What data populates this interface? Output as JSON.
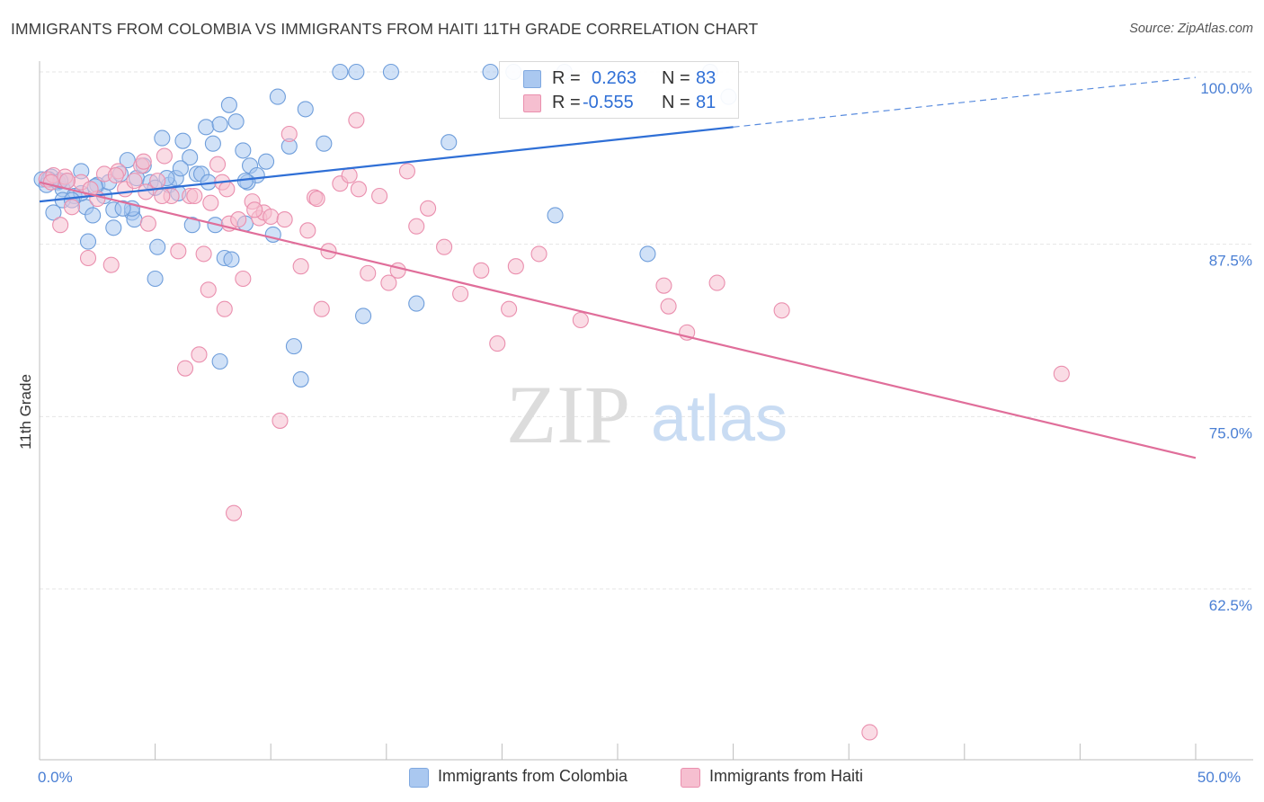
{
  "header": {
    "title": "IMMIGRANTS FROM COLOMBIA VS IMMIGRANTS FROM HAITI 11TH GRADE CORRELATION CHART",
    "source": "Source: ZipAtlas.com"
  },
  "watermark": {
    "zip": "ZIP",
    "atlas": "atlas"
  },
  "legend": {
    "r_label": "R =",
    "n_label": "N =",
    "rows": [
      {
        "r": "0.263",
        "n": "83",
        "color": "#7fa8e0"
      },
      {
        "r": "-0.555",
        "n": "81",
        "color": "#f1a3bc"
      }
    ]
  },
  "colors": {
    "blue_fill": "#aac8f0",
    "blue_stroke": "#6f9edb",
    "blue_line": "#2f6fd6",
    "pink_fill": "#f6bfd0",
    "pink_stroke": "#ea8fae",
    "pink_line": "#e06e9a",
    "tick_label": "#4a7fd4",
    "grid": "#e5e5e5"
  },
  "chart_data": {
    "type": "scatter",
    "title": "IMMIGRANTS FROM COLOMBIA VS IMMIGRANTS FROM HAITI 11TH GRADE CORRELATION CHART",
    "xlabel": "",
    "ylabel": "11th Grade",
    "xlim": [
      0,
      50
    ],
    "ylim": [
      50,
      102.5
    ],
    "x_ticks": [
      0,
      5,
      10,
      15,
      20,
      25,
      30,
      35,
      40,
      45,
      50
    ],
    "x_tick_labels": {
      "0": "0.0%",
      "50": "50.0%"
    },
    "y_ticks": [
      62.5,
      75.0,
      87.5,
      100.0
    ],
    "y_tick_labels": [
      "62.5%",
      "75.0%",
      "87.5%",
      "100.0%"
    ],
    "grid": true,
    "legend_position": "top-center",
    "series": [
      {
        "name": "Immigrants from Colombia",
        "color": "#aac8f0",
        "trend": {
          "x0": 0,
          "y0": 90.6,
          "x1": 30,
          "y1": 96.0,
          "dash_to_x": 50,
          "dash_to_y": 99.6
        },
        "points": [
          [
            0.1,
            92.2
          ],
          [
            0.3,
            91.8
          ],
          [
            0.5,
            92.4
          ],
          [
            0.8,
            92.0
          ],
          [
            1.0,
            91.5
          ],
          [
            0.6,
            89.8
          ],
          [
            1.2,
            92.1
          ],
          [
            1.5,
            91.0
          ],
          [
            1.8,
            92.8
          ],
          [
            2.0,
            90.2
          ],
          [
            2.3,
            89.6
          ],
          [
            2.5,
            91.8
          ],
          [
            2.8,
            91.0
          ],
          [
            3.0,
            92.0
          ],
          [
            3.2,
            90.0
          ],
          [
            3.5,
            92.6
          ],
          [
            3.8,
            93.6
          ],
          [
            4.0,
            89.8
          ],
          [
            4.2,
            92.3
          ],
          [
            4.5,
            93.2
          ],
          [
            4.8,
            92.0
          ],
          [
            5.0,
            91.6
          ],
          [
            5.3,
            95.2
          ],
          [
            5.6,
            91.8
          ],
          [
            5.9,
            92.3
          ],
          [
            6.2,
            95.0
          ],
          [
            6.5,
            93.8
          ],
          [
            6.8,
            92.6
          ],
          [
            7.2,
            96.0
          ],
          [
            7.5,
            94.8
          ],
          [
            7.8,
            96.2
          ],
          [
            8.2,
            97.6
          ],
          [
            8.5,
            96.4
          ],
          [
            8.8,
            94.3
          ],
          [
            9.1,
            93.2
          ],
          [
            9.4,
            92.5
          ],
          [
            9.8,
            93.5
          ],
          [
            10.3,
            98.2
          ],
          [
            10.8,
            94.6
          ],
          [
            11.5,
            97.3
          ],
          [
            12.3,
            94.8
          ],
          [
            13.0,
            100.0
          ],
          [
            13.7,
            100.0
          ],
          [
            15.2,
            100.0
          ],
          [
            17.7,
            94.9
          ],
          [
            19.5,
            100.0
          ],
          [
            20.5,
            100.0
          ],
          [
            22.7,
            100.0
          ],
          [
            29.0,
            100.0
          ],
          [
            29.8,
            98.2
          ],
          [
            2.1,
            87.7
          ],
          [
            3.2,
            88.7
          ],
          [
            4.1,
            89.3
          ],
          [
            5.1,
            87.3
          ],
          [
            5.0,
            85.0
          ],
          [
            6.6,
            88.9
          ],
          [
            7.6,
            88.9
          ],
          [
            8.0,
            86.5
          ],
          [
            8.3,
            86.4
          ],
          [
            8.9,
            89.0
          ],
          [
            10.1,
            88.2
          ],
          [
            11.0,
            80.1
          ],
          [
            11.3,
            77.7
          ],
          [
            14.0,
            82.3
          ],
          [
            16.3,
            83.2
          ],
          [
            7.8,
            79.0
          ],
          [
            22.3,
            89.6
          ],
          [
            26.3,
            86.8
          ],
          [
            1.0,
            90.7
          ],
          [
            1.8,
            91.2
          ],
          [
            4.0,
            90.1
          ],
          [
            6.0,
            91.2
          ],
          [
            7.0,
            92.6
          ],
          [
            9.0,
            92.0
          ],
          [
            0.4,
            92.2
          ],
          [
            0.9,
            92.1
          ],
          [
            1.4,
            90.7
          ],
          [
            2.4,
            91.7
          ],
          [
            3.6,
            90.1
          ],
          [
            5.5,
            92.3
          ],
          [
            6.1,
            93.0
          ],
          [
            7.3,
            92.0
          ],
          [
            8.9,
            92.1
          ]
        ]
      },
      {
        "name": "Immigrants from Haiti",
        "color": "#f6bfd0",
        "trend": {
          "x0": 0,
          "y0": 92.0,
          "x1": 50,
          "y1": 72.0
        },
        "points": [
          [
            0.3,
            92.2
          ],
          [
            0.6,
            92.5
          ],
          [
            0.9,
            88.9
          ],
          [
            1.1,
            92.4
          ],
          [
            1.4,
            90.2
          ],
          [
            1.8,
            92.0
          ],
          [
            2.1,
            86.5
          ],
          [
            2.5,
            90.8
          ],
          [
            2.8,
            92.6
          ],
          [
            3.1,
            86.0
          ],
          [
            3.4,
            92.8
          ],
          [
            3.7,
            91.5
          ],
          [
            4.1,
            92.1
          ],
          [
            4.4,
            93.2
          ],
          [
            4.7,
            89.0
          ],
          [
            4.6,
            91.3
          ],
          [
            5.1,
            92.1
          ],
          [
            5.4,
            93.9
          ],
          [
            5.7,
            91.0
          ],
          [
            6.0,
            87.0
          ],
          [
            6.3,
            78.5
          ],
          [
            6.5,
            91.0
          ],
          [
            6.9,
            79.5
          ],
          [
            7.1,
            86.8
          ],
          [
            7.3,
            84.2
          ],
          [
            7.7,
            93.3
          ],
          [
            7.9,
            92.0
          ],
          [
            8.0,
            82.8
          ],
          [
            8.2,
            89.0
          ],
          [
            8.6,
            89.3
          ],
          [
            8.8,
            85.0
          ],
          [
            9.2,
            90.6
          ],
          [
            9.5,
            89.4
          ],
          [
            9.7,
            89.8
          ],
          [
            10.0,
            89.5
          ],
          [
            10.4,
            74.7
          ],
          [
            10.8,
            95.5
          ],
          [
            11.3,
            85.9
          ],
          [
            11.6,
            88.5
          ],
          [
            11.9,
            90.9
          ],
          [
            12.2,
            82.8
          ],
          [
            12.5,
            87.0
          ],
          [
            13.0,
            91.9
          ],
          [
            13.4,
            92.5
          ],
          [
            13.7,
            96.5
          ],
          [
            14.2,
            85.4
          ],
          [
            14.7,
            91.0
          ],
          [
            15.1,
            84.7
          ],
          [
            15.5,
            85.6
          ],
          [
            15.9,
            92.8
          ],
          [
            16.3,
            88.8
          ],
          [
            16.8,
            90.1
          ],
          [
            17.5,
            87.3
          ],
          [
            18.2,
            83.9
          ],
          [
            19.1,
            85.6
          ],
          [
            19.8,
            80.3
          ],
          [
            20.3,
            82.8
          ],
          [
            20.6,
            85.9
          ],
          [
            21.6,
            86.8
          ],
          [
            23.4,
            82.0
          ],
          [
            27.0,
            84.5
          ],
          [
            27.2,
            83.0
          ],
          [
            28.0,
            81.1
          ],
          [
            29.3,
            84.7
          ],
          [
            32.1,
            82.7
          ],
          [
            44.2,
            78.1
          ],
          [
            8.4,
            68.0
          ],
          [
            35.9,
            52.1
          ],
          [
            1.2,
            92.1
          ],
          [
            2.2,
            91.5
          ],
          [
            3.3,
            92.5
          ],
          [
            4.5,
            93.5
          ],
          [
            5.3,
            91.0
          ],
          [
            6.7,
            91.0
          ],
          [
            7.4,
            90.5
          ],
          [
            8.1,
            91.5
          ],
          [
            9.3,
            90.0
          ],
          [
            10.6,
            89.3
          ],
          [
            12.0,
            90.8
          ],
          [
            13.8,
            91.5
          ],
          [
            0.5,
            92.0
          ]
        ]
      }
    ]
  },
  "bottom_legend": [
    {
      "label": "Immigrants from Colombia",
      "color": "#aac8f0"
    },
    {
      "label": "Immigrants from Haiti",
      "color": "#f6bfd0"
    }
  ]
}
